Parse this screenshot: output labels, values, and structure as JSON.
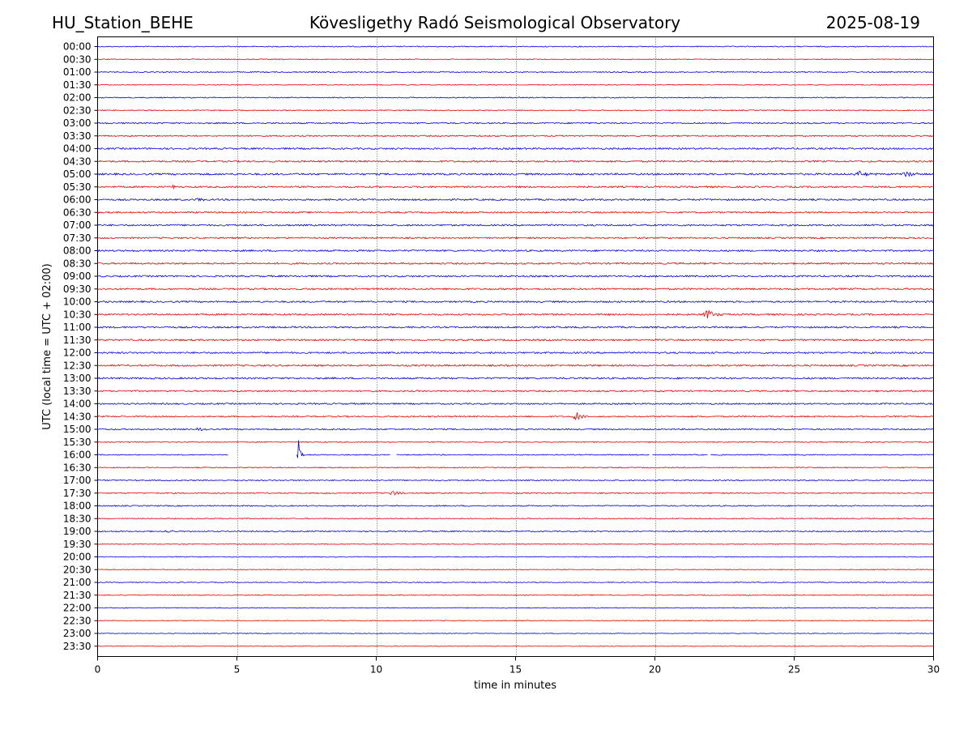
{
  "header": {
    "station": "HU_Station_BEHE",
    "observatory": "Kövesligethy Radó Seismological Observatory",
    "date": "2025-08-19"
  },
  "colors": {
    "trace_even": "#0000ff",
    "trace_odd": "#ff0000",
    "grid": "#000000"
  },
  "chart_data": {
    "type": "line",
    "title": "Kövesligethy Radó Seismological Observatory",
    "xlabel": "time in minutes",
    "ylabel": "UTC (local time = UTC + 02:00)",
    "xlim": [
      0,
      30
    ],
    "x_ticks": [
      0,
      5,
      10,
      15,
      20,
      25,
      30
    ],
    "grid": "vertical dotted at x ticks",
    "row_labels": [
      "00:00",
      "00:30",
      "01:00",
      "01:30",
      "02:00",
      "02:30",
      "03:00",
      "03:30",
      "04:00",
      "04:30",
      "05:00",
      "05:30",
      "06:00",
      "06:30",
      "07:00",
      "07:30",
      "08:00",
      "08:30",
      "09:00",
      "09:30",
      "10:00",
      "10:30",
      "11:00",
      "11:30",
      "12:00",
      "12:30",
      "13:00",
      "13:30",
      "14:00",
      "14:30",
      "15:00",
      "15:30",
      "16:00",
      "16:30",
      "17:00",
      "17:30",
      "18:00",
      "18:30",
      "19:00",
      "19:30",
      "20:00",
      "20:30",
      "21:00",
      "21:30",
      "22:00",
      "22:30",
      "23:00",
      "23:30"
    ],
    "noise_level": [
      0.6,
      0.5,
      0.6,
      0.5,
      0.6,
      0.6,
      0.8,
      0.8,
      1.0,
      1.0,
      1.1,
      1.0,
      1.0,
      0.9,
      1.0,
      0.9,
      1.0,
      1.0,
      1.0,
      1.0,
      1.0,
      1.0,
      1.0,
      1.0,
      1.0,
      1.0,
      1.0,
      0.9,
      0.9,
      0.8,
      0.8,
      0.6,
      0.6,
      0.6,
      0.7,
      0.7,
      0.7,
      0.6,
      0.7,
      0.5,
      0.5,
      0.5,
      0.5,
      0.5,
      0.5,
      0.5,
      0.4,
      0.4
    ],
    "events": [
      {
        "row": 10,
        "minute": 27.3,
        "duration": 0.4,
        "amp": 4
      },
      {
        "row": 10,
        "minute": 29.0,
        "duration": 0.4,
        "amp": 4
      },
      {
        "row": 11,
        "minute": 2.7,
        "duration": 0.1,
        "amp": 5
      },
      {
        "row": 12,
        "minute": 3.6,
        "duration": 0.3,
        "amp": 3
      },
      {
        "row": 21,
        "minute": 21.9,
        "duration": 0.4,
        "amp": 6
      },
      {
        "row": 29,
        "minute": 17.2,
        "duration": 0.4,
        "amp": 5
      },
      {
        "row": 30,
        "minute": 3.6,
        "duration": 0.2,
        "amp": 4
      },
      {
        "row": 32,
        "minute": 7.2,
        "duration": 0.1,
        "amp": 32
      },
      {
        "row": 35,
        "minute": 10.6,
        "duration": 0.4,
        "amp": 3
      },
      {
        "row": 38,
        "minute": 2.5,
        "duration": 0.3,
        "amp": 2
      }
    ],
    "gaps": [
      {
        "row": 32,
        "from": 4.7,
        "to": 7.15
      },
      {
        "row": 32,
        "from": 10.5,
        "to": 10.7
      },
      {
        "row": 32,
        "from": 19.8,
        "to": 19.9
      },
      {
        "row": 32,
        "from": 21.9,
        "to": 22.0
      }
    ]
  }
}
